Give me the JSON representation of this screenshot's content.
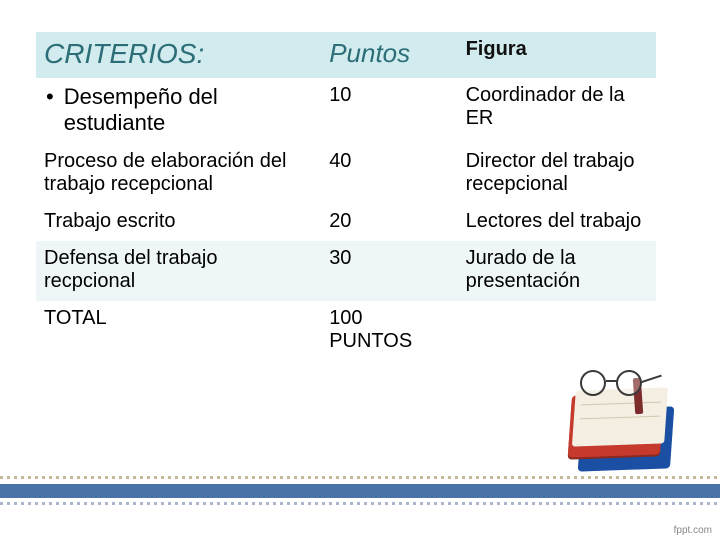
{
  "colors": {
    "header_band": "#d1ebee",
    "header_criterios_text": "#2b6e77",
    "header_puntos_text": "#2b6e77",
    "header_figura_text": "#111111",
    "body_text": "#000000",
    "row_band_a": "#ffffff",
    "row_band_b": "#eef6f7",
    "stripe_top_dash": "#c7b89b",
    "stripe_mid_solid": "#4a74a8",
    "stripe_bot_dash": "#a9b7cc",
    "book_back": "#1b4fa3",
    "book_front": "#c6392d",
    "book_pages": "#f4efe2",
    "watermark": "#888888"
  },
  "table": {
    "headers": {
      "criterios": "CRITERIOS:",
      "puntos": "Puntos",
      "figura": "Figura"
    },
    "header_fontsize": {
      "criterios": 28,
      "puntos": 26,
      "figura": 20
    },
    "column_widths_pct": [
      46,
      22,
      32
    ],
    "rows": [
      {
        "criterio": "Desempeño del estudiante",
        "bullet": true,
        "puntos": "10",
        "figura": "Coordinador de la ER",
        "band": "a",
        "crit_fontsize": 22
      },
      {
        "criterio": "Proceso de elaboración del trabajo recepcional",
        "bullet": false,
        "puntos": "40",
        "figura": "Director del trabajo recepcional",
        "band": "a",
        "crit_fontsize": 20
      },
      {
        "criterio": "Trabajo escrito",
        "bullet": false,
        "puntos": "20",
        "figura": "Lectores del trabajo",
        "band": "a",
        "crit_fontsize": 20
      },
      {
        "criterio": "Defensa del trabajo recpcional",
        "bullet": false,
        "puntos": "30",
        "figura": "Jurado de la presentación",
        "band": "b",
        "crit_fontsize": 20
      },
      {
        "criterio": "TOTAL",
        "bullet": false,
        "puntos": "100 PUNTOS",
        "figura": "",
        "band": "a",
        "crit_fontsize": 20
      }
    ]
  },
  "watermark": "fppt.com"
}
